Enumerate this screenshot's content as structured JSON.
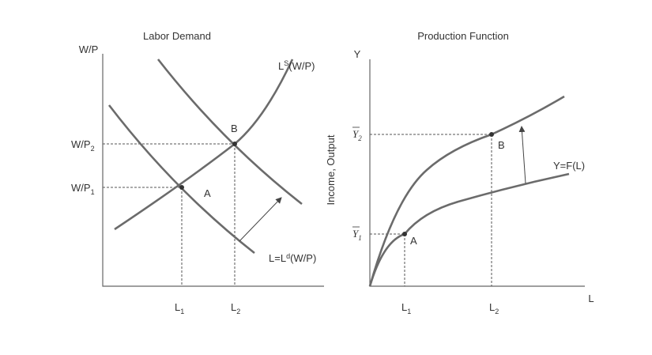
{
  "left_panel": {
    "title": "Labor Demand",
    "y_axis_label": "W/P",
    "y_ticks": [
      {
        "main": "W/P",
        "sub": "2"
      },
      {
        "main": "W/P",
        "sub": "1"
      }
    ],
    "x_ticks": [
      {
        "main": "L",
        "sub": "1"
      },
      {
        "main": "L",
        "sub": "2"
      }
    ],
    "points": [
      "A",
      "B"
    ],
    "supply_label": {
      "main": "L",
      "sup": "S",
      "rest": "(W/P)"
    },
    "demand_label": {
      "main": "L=L",
      "sup": "d",
      "rest": "(W/P)"
    }
  },
  "right_panel": {
    "title": "Production Function",
    "y_axis_label": "Y",
    "y_axis_title": "Income, Output",
    "x_axis_label": "L",
    "y_ticks": [
      {
        "main": "Y",
        "sub": "2"
      },
      {
        "main": "Y",
        "sub": "1"
      }
    ],
    "x_ticks": [
      {
        "main": "L",
        "sub": "1"
      },
      {
        "main": "L",
        "sub": "2"
      }
    ],
    "points": [
      "A",
      "B"
    ],
    "curve_label": "Y=F(L)"
  }
}
